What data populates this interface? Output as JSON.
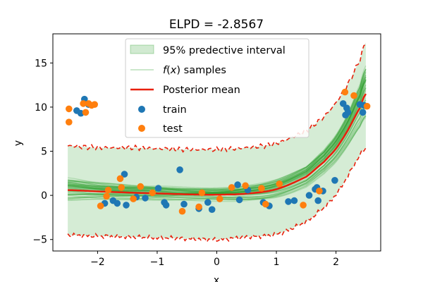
{
  "chart_data": {
    "type": "scatter",
    "title": "ELPD = -2.8567",
    "xlabel": "x",
    "ylabel": "y",
    "xlim": [
      -2.75,
      2.75
    ],
    "ylim": [
      -6.3,
      18.3
    ],
    "xticks": [
      -2,
      -1,
      0,
      1,
      2
    ],
    "yticks": [
      -5,
      0,
      5,
      10,
      15
    ],
    "grid": false,
    "legend_position": "top-center",
    "legend": [
      {
        "label": "95% predective interval",
        "kind": "patch"
      },
      {
        "label": "f(x) samples",
        "kind": "line-faint"
      },
      {
        "label": "Posterior mean",
        "kind": "line"
      },
      {
        "label": "train",
        "kind": "marker"
      },
      {
        "label": "test",
        "kind": "marker"
      }
    ],
    "colors": {
      "interval_fill": "#2ca02c",
      "samples": "#2ca02c",
      "mean": "#e8200c",
      "bound": "#e8200c",
      "train": "#1f77b4",
      "test": "#ff7f0e"
    },
    "series": [
      {
        "name": "train",
        "points": [
          [
            -2.28,
            9.3
          ],
          [
            -2.22,
            10.9
          ],
          [
            -2.35,
            9.6
          ],
          [
            -2.15,
            10.3
          ],
          [
            -1.88,
            -0.9
          ],
          [
            -1.74,
            -0.6
          ],
          [
            -1.67,
            -0.9
          ],
          [
            -1.55,
            2.4
          ],
          [
            -1.52,
            -1.1
          ],
          [
            -1.35,
            -0.2
          ],
          [
            -1.2,
            -0.3
          ],
          [
            -0.98,
            0.8
          ],
          [
            -0.88,
            -0.8
          ],
          [
            -0.85,
            -1.1
          ],
          [
            -0.62,
            2.9
          ],
          [
            -0.55,
            -1.0
          ],
          [
            -0.3,
            -1.5
          ],
          [
            -0.15,
            -0.8
          ],
          [
            -0.08,
            -1.6
          ],
          [
            0.35,
            1.2
          ],
          [
            0.38,
            -0.5
          ],
          [
            0.52,
            0.6
          ],
          [
            0.78,
            -0.8
          ],
          [
            0.88,
            -1.2
          ],
          [
            1.2,
            -0.7
          ],
          [
            1.3,
            -0.6
          ],
          [
            1.55,
            0.0
          ],
          [
            1.65,
            0.7
          ],
          [
            1.68,
            0.9
          ],
          [
            1.7,
            -0.6
          ],
          [
            1.78,
            0.5
          ],
          [
            1.98,
            1.7
          ],
          [
            2.12,
            10.4
          ],
          [
            2.16,
            9.1
          ],
          [
            2.18,
            9.9
          ],
          [
            2.2,
            9.4
          ],
          [
            2.4,
            10.3
          ],
          [
            2.45,
            9.4
          ],
          [
            2.47,
            10.2
          ]
        ]
      },
      {
        "name": "test",
        "points": [
          [
            -2.48,
            9.8
          ],
          [
            -2.48,
            8.3
          ],
          [
            -2.24,
            10.4
          ],
          [
            -2.2,
            9.4
          ],
          [
            -2.15,
            10.4
          ],
          [
            -2.1,
            10.2
          ],
          [
            -2.05,
            10.3
          ],
          [
            -1.95,
            -1.2
          ],
          [
            -1.85,
            -0.1
          ],
          [
            -1.82,
            0.6
          ],
          [
            -1.62,
            1.9
          ],
          [
            -1.6,
            0.9
          ],
          [
            -1.4,
            -0.4
          ],
          [
            -1.28,
            1.0
          ],
          [
            -1.08,
            0.3
          ],
          [
            -0.58,
            -1.8
          ],
          [
            -0.3,
            -1.3
          ],
          [
            -0.25,
            0.3
          ],
          [
            0.05,
            -0.4
          ],
          [
            0.25,
            0.9
          ],
          [
            0.48,
            1.1
          ],
          [
            0.75,
            0.8
          ],
          [
            0.82,
            -1.0
          ],
          [
            1.05,
            1.3
          ],
          [
            1.45,
            -1.1
          ],
          [
            1.72,
            0.5
          ],
          [
            2.15,
            11.7
          ],
          [
            2.3,
            11.3
          ],
          [
            2.52,
            10.1
          ]
        ]
      },
      {
        "name": "Posterior mean",
        "points": [
          [
            -2.5,
            0.6
          ],
          [
            -2.0,
            0.45
          ],
          [
            -1.5,
            0.32
          ],
          [
            -1.0,
            0.22
          ],
          [
            -0.5,
            0.12
          ],
          [
            0.0,
            0.08
          ],
          [
            0.5,
            0.2
          ],
          [
            1.0,
            0.7
          ],
          [
            1.5,
            2.1
          ],
          [
            1.8,
            3.8
          ],
          [
            2.0,
            5.3
          ],
          [
            2.2,
            7.4
          ],
          [
            2.4,
            9.9
          ],
          [
            2.5,
            11.5
          ]
        ]
      },
      {
        "name": "95% upper",
        "points": [
          [
            -2.5,
            5.6
          ],
          [
            -2.0,
            5.4
          ],
          [
            -1.5,
            5.4
          ],
          [
            -1.0,
            5.3
          ],
          [
            -0.5,
            5.2
          ],
          [
            0.0,
            5.2
          ],
          [
            0.5,
            5.4
          ],
          [
            1.0,
            5.9
          ],
          [
            1.5,
            7.3
          ],
          [
            1.8,
            8.9
          ],
          [
            2.0,
            10.5
          ],
          [
            2.2,
            12.6
          ],
          [
            2.4,
            15.3
          ],
          [
            2.5,
            17.3
          ]
        ]
      },
      {
        "name": "95% lower",
        "points": [
          [
            -2.5,
            -4.5
          ],
          [
            -2.0,
            -4.6
          ],
          [
            -1.5,
            -4.7
          ],
          [
            -1.0,
            -4.8
          ],
          [
            -0.5,
            -4.9
          ],
          [
            0.0,
            -5.0
          ],
          [
            0.5,
            -4.7
          ],
          [
            1.0,
            -4.4
          ],
          [
            1.5,
            -3.0
          ],
          [
            1.8,
            -1.4
          ],
          [
            2.0,
            0.1
          ],
          [
            2.2,
            2.2
          ],
          [
            2.4,
            4.5
          ],
          [
            2.5,
            5.4
          ]
        ]
      },
      {
        "name": "samples band upper",
        "points": [
          [
            -2.5,
            1.8
          ],
          [
            -2.0,
            1.3
          ],
          [
            -1.5,
            1.0
          ],
          [
            -1.0,
            0.8
          ],
          [
            -0.5,
            0.6
          ],
          [
            0.0,
            0.6
          ],
          [
            0.5,
            0.9
          ],
          [
            1.0,
            1.6
          ],
          [
            1.5,
            3.2
          ],
          [
            1.8,
            5.1
          ],
          [
            2.0,
            6.8
          ],
          [
            2.2,
            9.2
          ],
          [
            2.4,
            12.4
          ],
          [
            2.5,
            14.5
          ]
        ]
      },
      {
        "name": "samples band lower",
        "points": [
          [
            -2.5,
            -0.6
          ],
          [
            -2.0,
            -0.4
          ],
          [
            -1.5,
            -0.35
          ],
          [
            -1.0,
            -0.35
          ],
          [
            -0.5,
            -0.35
          ],
          [
            0.0,
            -0.4
          ],
          [
            0.5,
            -0.5
          ],
          [
            1.0,
            -0.2
          ],
          [
            1.5,
            1.0
          ],
          [
            1.8,
            2.5
          ],
          [
            2.0,
            3.8
          ],
          [
            2.2,
            5.6
          ],
          [
            2.4,
            7.6
          ],
          [
            2.5,
            8.7
          ]
        ]
      }
    ]
  }
}
